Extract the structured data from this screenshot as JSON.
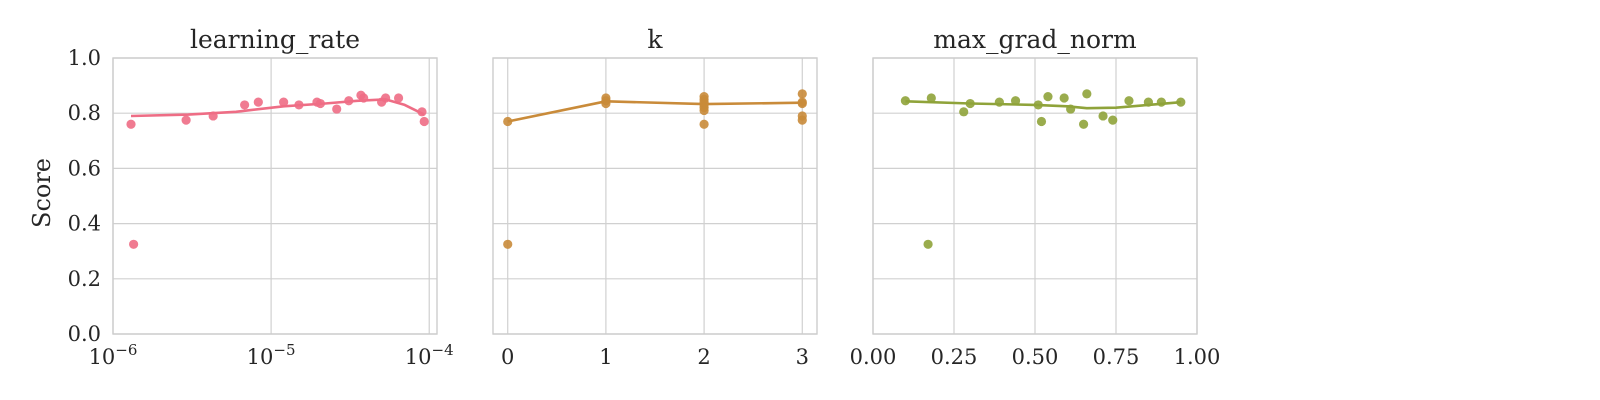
{
  "figure": {
    "ylabel": "Score",
    "ylim": [
      0,
      1
    ],
    "yticks": [
      "0.0",
      "0.2",
      "0.4",
      "0.6",
      "0.8",
      "1.0"
    ],
    "grid": true
  },
  "chart_data": [
    {
      "type": "scatter",
      "title": "learning_rate",
      "xscale": "log",
      "xlim": [
        1e-06,
        0.000112
      ],
      "xticks": [
        {
          "value": 1e-06,
          "base": "10",
          "exp": "−6"
        },
        {
          "value": 1e-05,
          "base": "10",
          "exp": "−5"
        },
        {
          "value": 0.0001,
          "base": "10",
          "exp": "−4"
        }
      ],
      "color": "#ee6d85",
      "points": [
        {
          "x": 1.3e-06,
          "y": 0.76
        },
        {
          "x": 1.35e-06,
          "y": 0.325
        },
        {
          "x": 2.9e-06,
          "y": 0.775
        },
        {
          "x": 4.3e-06,
          "y": 0.79
        },
        {
          "x": 6.8e-06,
          "y": 0.83
        },
        {
          "x": 8.3e-06,
          "y": 0.84
        },
        {
          "x": 1.2e-05,
          "y": 0.84
        },
        {
          "x": 1.5e-05,
          "y": 0.83
        },
        {
          "x": 1.95e-05,
          "y": 0.84
        },
        {
          "x": 2.05e-05,
          "y": 0.835
        },
        {
          "x": 2.6e-05,
          "y": 0.815
        },
        {
          "x": 3.1e-05,
          "y": 0.845
        },
        {
          "x": 3.7e-05,
          "y": 0.865
        },
        {
          "x": 3.85e-05,
          "y": 0.855
        },
        {
          "x": 5e-05,
          "y": 0.84
        },
        {
          "x": 5.3e-05,
          "y": 0.855
        },
        {
          "x": 6.4e-05,
          "y": 0.855
        },
        {
          "x": 9e-05,
          "y": 0.805
        },
        {
          "x": 9.3e-05,
          "y": 0.77
        }
      ],
      "trend": [
        {
          "x": 1.3e-06,
          "y": 0.79
        },
        {
          "x": 3e-06,
          "y": 0.795
        },
        {
          "x": 6e-06,
          "y": 0.805
        },
        {
          "x": 1.2e-05,
          "y": 0.825
        },
        {
          "x": 2.2e-05,
          "y": 0.835
        },
        {
          "x": 3.5e-05,
          "y": 0.845
        },
        {
          "x": 5.3e-05,
          "y": 0.85
        },
        {
          "x": 7e-05,
          "y": 0.83
        },
        {
          "x": 9.3e-05,
          "y": 0.795
        }
      ]
    },
    {
      "type": "scatter",
      "title": "k",
      "xscale": "linear",
      "xlim": [
        -0.15,
        3.15
      ],
      "xticks": [
        {
          "value": 0,
          "label": "0"
        },
        {
          "value": 1,
          "label": "1"
        },
        {
          "value": 2,
          "label": "2"
        },
        {
          "value": 3,
          "label": "3"
        }
      ],
      "color": "#c98b3a",
      "points": [
        {
          "x": 0,
          "y": 0.77
        },
        {
          "x": 0,
          "y": 0.325
        },
        {
          "x": 1,
          "y": 0.855
        },
        {
          "x": 1,
          "y": 0.845
        },
        {
          "x": 1,
          "y": 0.835
        },
        {
          "x": 2,
          "y": 0.86
        },
        {
          "x": 2,
          "y": 0.85
        },
        {
          "x": 2,
          "y": 0.84
        },
        {
          "x": 2,
          "y": 0.83
        },
        {
          "x": 2,
          "y": 0.82
        },
        {
          "x": 2,
          "y": 0.81
        },
        {
          "x": 2,
          "y": 0.76
        },
        {
          "x": 3,
          "y": 0.87
        },
        {
          "x": 3,
          "y": 0.84
        },
        {
          "x": 3,
          "y": 0.835
        },
        {
          "x": 3,
          "y": 0.79
        },
        {
          "x": 3,
          "y": 0.775
        }
      ],
      "trend": [
        {
          "x": 0,
          "y": 0.77
        },
        {
          "x": 1,
          "y": 0.843
        },
        {
          "x": 2,
          "y": 0.833
        },
        {
          "x": 3,
          "y": 0.838
        }
      ]
    },
    {
      "type": "scatter",
      "title": "max_grad_norm",
      "xscale": "linear",
      "xlim": [
        0,
        1
      ],
      "xticks": [
        {
          "value": 0,
          "label": "0.00"
        },
        {
          "value": 0.25,
          "label": "0.25"
        },
        {
          "value": 0.5,
          "label": "0.50"
        },
        {
          "value": 0.75,
          "label": "0.75"
        },
        {
          "value": 1.0,
          "label": "1.00"
        }
      ],
      "color": "#8fa33a",
      "points": [
        {
          "x": 0.1,
          "y": 0.845
        },
        {
          "x": 0.17,
          "y": 0.325
        },
        {
          "x": 0.18,
          "y": 0.855
        },
        {
          "x": 0.28,
          "y": 0.805
        },
        {
          "x": 0.3,
          "y": 0.835
        },
        {
          "x": 0.39,
          "y": 0.84
        },
        {
          "x": 0.44,
          "y": 0.845
        },
        {
          "x": 0.51,
          "y": 0.83
        },
        {
          "x": 0.52,
          "y": 0.77
        },
        {
          "x": 0.54,
          "y": 0.86
        },
        {
          "x": 0.59,
          "y": 0.855
        },
        {
          "x": 0.61,
          "y": 0.815
        },
        {
          "x": 0.65,
          "y": 0.76
        },
        {
          "x": 0.66,
          "y": 0.87
        },
        {
          "x": 0.71,
          "y": 0.79
        },
        {
          "x": 0.74,
          "y": 0.775
        },
        {
          "x": 0.79,
          "y": 0.845
        },
        {
          "x": 0.85,
          "y": 0.84
        },
        {
          "x": 0.89,
          "y": 0.84
        },
        {
          "x": 0.95,
          "y": 0.84
        }
      ],
      "trend": [
        {
          "x": 0.1,
          "y": 0.843
        },
        {
          "x": 0.3,
          "y": 0.835
        },
        {
          "x": 0.5,
          "y": 0.83
        },
        {
          "x": 0.6,
          "y": 0.825
        },
        {
          "x": 0.66,
          "y": 0.818
        },
        {
          "x": 0.75,
          "y": 0.82
        },
        {
          "x": 0.85,
          "y": 0.83
        },
        {
          "x": 0.95,
          "y": 0.84
        }
      ]
    }
  ]
}
